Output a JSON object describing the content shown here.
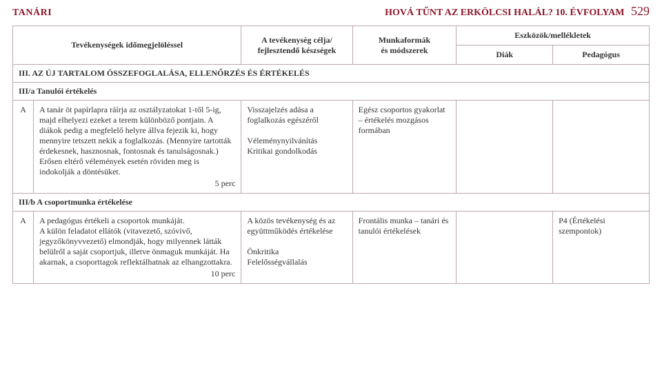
{
  "header": {
    "left": "TANÁRI",
    "right_title": "HOVÁ TŰNT AZ ERKÖLCSI HALÁL? 10. ÉVFOLYAM",
    "page_number": "529"
  },
  "table_head": {
    "col1": "Tevékenységek időmegjelöléssel",
    "col2": "A tevékenység célja/\nfejlesztendő készségek",
    "col3": "Munkaformák\nés módszerek",
    "col_tools": "Eszközök/mellékletek",
    "col4": "Diák",
    "col5": "Pedagógus"
  },
  "section3": {
    "title": "III. AZ ÚJ TARTALOM ÖSSZEFOGLALÁSA, ELLENŐRZÉS ÉS ÉRTÉKELÉS",
    "sub_a_title": "III/a Tanulói értékelés",
    "row_a": {
      "label": "A",
      "activity": "A tanár öt papírlapra ráírja az osztályzatokat 1-től 5-ig, majd elhelyezi ezeket a terem különböző pontjain. A diákok pedig a megfelelő helyre állva fejezik ki, hogy mennyire tetszett nekik a foglalkozás. (Mennyire tartották érdekesnek, hasznosnak, fontosnak és tanulságosnak.) Erősen eltérő vélemények esetén röviden meg is indokolják a döntésüket.",
      "time": "5 perc",
      "aim": "Visszajelzés adása a foglalkozás egészéről\n\nVéleménynyilvánítás\nKritikai gondolkodás",
      "methods": "Egész csoportos gyakorlat – értékelés mozgásos formában",
      "diak": "",
      "pedagogus": ""
    },
    "sub_b_title": "III/b A csoportmunka értékelése",
    "row_b": {
      "label": "A",
      "activity": "A pedagógus értékeli a csoportok munkáját.\nA külön feladatot ellátók (vitavezető, szóvivő, jegyzőkönyvvezető) elmondják, hogy milyennek látták belülről a saját csoportjuk, illetve önmaguk munkáját. Ha akarnak, a csoporttagok reflektálhatnak az elhangzottakra.",
      "time": "10 perc",
      "aim": "A közös tevékenység és az együttműködés értékelése\n\nÖnkritika\nFelelősségvállalás",
      "methods": "Frontális munka – tanári és tanulói értékelések",
      "diak": "",
      "pedagogus": "P4 (Értékelési szempontok)"
    }
  }
}
